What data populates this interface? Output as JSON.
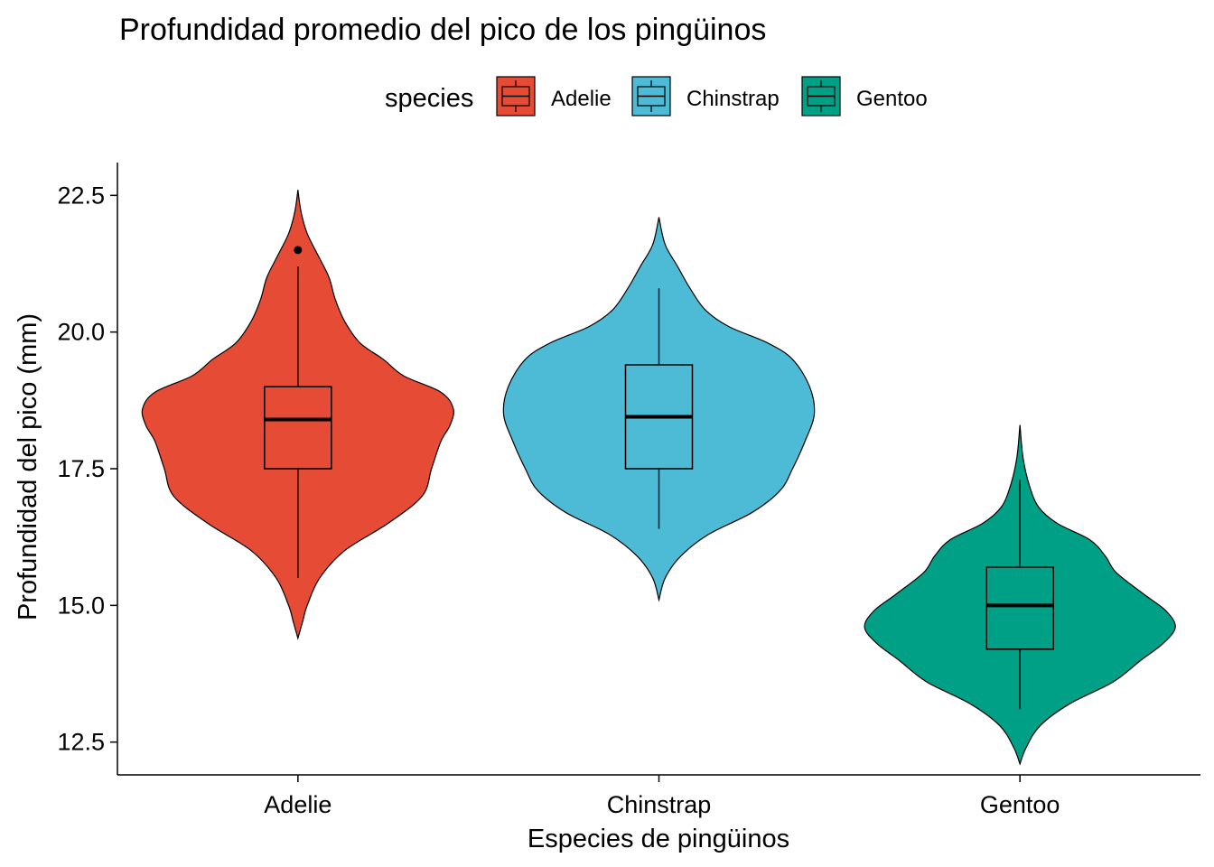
{
  "chart_data": {
    "type": "violin",
    "title": "Profundidad promedio del pico de los pingüinos",
    "xlabel": "Especies de pingüinos",
    "ylabel": "Profundidad del pico (mm)",
    "ylim": [
      11.9,
      23.1
    ],
    "yticks": [
      "12.5",
      "15.0",
      "17.5",
      "20.0",
      "22.5"
    ],
    "grid": false,
    "legend": {
      "title": "species",
      "position": "top",
      "entries": [
        "Adelie",
        "Chinstrap",
        "Gentoo"
      ]
    },
    "categories": [
      "Adelie",
      "Chinstrap",
      "Gentoo"
    ],
    "series": [
      {
        "name": "Adelie",
        "color": "#E64B35",
        "violin_range": [
          14.4,
          22.6
        ],
        "violin_profile": [
          [
            14.4,
            0.0
          ],
          [
            14.7,
            0.03
          ],
          [
            15.0,
            0.06
          ],
          [
            15.5,
            0.14
          ],
          [
            16.0,
            0.3
          ],
          [
            16.5,
            0.58
          ],
          [
            17.0,
            0.8
          ],
          [
            17.5,
            0.86
          ],
          [
            18.0,
            0.92
          ],
          [
            18.3,
            0.98
          ],
          [
            18.6,
            1.0
          ],
          [
            18.9,
            0.92
          ],
          [
            19.2,
            0.68
          ],
          [
            19.5,
            0.55
          ],
          [
            19.8,
            0.4
          ],
          [
            20.2,
            0.3
          ],
          [
            20.6,
            0.24
          ],
          [
            21.0,
            0.2
          ],
          [
            21.4,
            0.13
          ],
          [
            21.8,
            0.06
          ],
          [
            22.2,
            0.02
          ],
          [
            22.6,
            0.0
          ]
        ],
        "box": {
          "whisker_low": 15.5,
          "q1": 17.5,
          "median": 18.4,
          "q3": 19.0,
          "whisker_high": 21.2
        },
        "outliers": [
          21.5
        ]
      },
      {
        "name": "Chinstrap",
        "color": "#4DBBD5",
        "violin_range": [
          15.1,
          22.1
        ],
        "violin_profile": [
          [
            15.1,
            0.0
          ],
          [
            15.5,
            0.04
          ],
          [
            15.9,
            0.14
          ],
          [
            16.3,
            0.32
          ],
          [
            16.7,
            0.6
          ],
          [
            17.1,
            0.78
          ],
          [
            17.5,
            0.86
          ],
          [
            18.0,
            0.94
          ],
          [
            18.5,
            1.0
          ],
          [
            19.0,
            0.97
          ],
          [
            19.5,
            0.86
          ],
          [
            19.8,
            0.7
          ],
          [
            20.1,
            0.45
          ],
          [
            20.4,
            0.3
          ],
          [
            20.8,
            0.2
          ],
          [
            21.2,
            0.12
          ],
          [
            21.6,
            0.04
          ],
          [
            22.1,
            0.0
          ]
        ],
        "box": {
          "whisker_low": 16.4,
          "q1": 17.5,
          "median": 18.45,
          "q3": 19.4,
          "whisker_high": 20.8
        },
        "outliers": []
      },
      {
        "name": "Gentoo",
        "color": "#00A087",
        "violin_range": [
          12.1,
          18.3
        ],
        "violin_profile": [
          [
            12.1,
            0.0
          ],
          [
            12.4,
            0.04
          ],
          [
            12.8,
            0.13
          ],
          [
            13.2,
            0.32
          ],
          [
            13.6,
            0.6
          ],
          [
            14.0,
            0.78
          ],
          [
            14.3,
            0.92
          ],
          [
            14.6,
            1.0
          ],
          [
            14.9,
            0.94
          ],
          [
            15.2,
            0.8
          ],
          [
            15.6,
            0.62
          ],
          [
            15.9,
            0.55
          ],
          [
            16.2,
            0.45
          ],
          [
            16.5,
            0.24
          ],
          [
            16.8,
            0.12
          ],
          [
            17.2,
            0.06
          ],
          [
            17.7,
            0.02
          ],
          [
            18.3,
            0.0
          ]
        ],
        "box": {
          "whisker_low": 13.1,
          "q1": 14.2,
          "median": 15.0,
          "q3": 15.7,
          "whisker_high": 17.3
        },
        "outliers": []
      }
    ]
  }
}
